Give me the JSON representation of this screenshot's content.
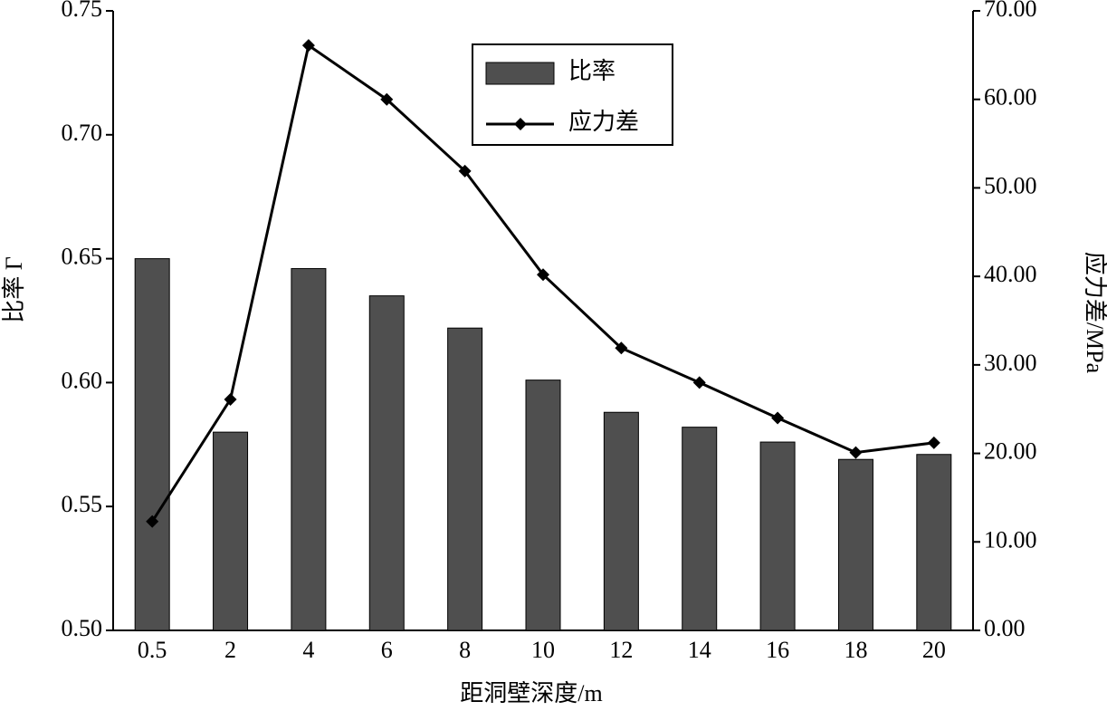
{
  "chart_data": {
    "type": "bar-line",
    "x_label": "距洞壁深度/m",
    "y_label": "比率 Γ",
    "y2_label": "应力差/MPa",
    "categories": [
      "0.5",
      "2",
      "4",
      "6",
      "8",
      "10",
      "12",
      "14",
      "16",
      "18",
      "20"
    ],
    "series": [
      {
        "name": "比率",
        "type": "bar",
        "color": "#4f4f4f",
        "values": [
          0.65,
          0.58,
          0.646,
          0.635,
          0.622,
          0.601,
          0.588,
          0.582,
          0.576,
          0.569,
          0.571
        ]
      },
      {
        "name": "应力差",
        "type": "line",
        "axis": "y2",
        "color": "#000000",
        "values": [
          12.3,
          26.1,
          66.1,
          60.0,
          51.9,
          40.2,
          31.9,
          28.0,
          24.0,
          20.1,
          21.2
        ]
      }
    ],
    "ylim": [
      0.5,
      0.75
    ],
    "yticks": [
      {
        "value": 0.5,
        "label": "0.50"
      },
      {
        "value": 0.55,
        "label": "0.55"
      },
      {
        "value": 0.6,
        "label": "0.60"
      },
      {
        "value": 0.65,
        "label": "0.65"
      },
      {
        "value": 0.7,
        "label": "0.70"
      },
      {
        "value": 0.75,
        "label": "0.75"
      }
    ],
    "y2lim": [
      0,
      70
    ],
    "y2ticks": [
      {
        "value": 0,
        "label": "0.00"
      },
      {
        "value": 10,
        "label": "10.00"
      },
      {
        "value": 20,
        "label": "20.00"
      },
      {
        "value": 30,
        "label": "30.00"
      },
      {
        "value": 40,
        "label": "40.00"
      },
      {
        "value": 50,
        "label": "50.00"
      },
      {
        "value": 60,
        "label": "60.00"
      },
      {
        "value": 70,
        "label": "70.00"
      }
    ],
    "legend": "top-center"
  }
}
